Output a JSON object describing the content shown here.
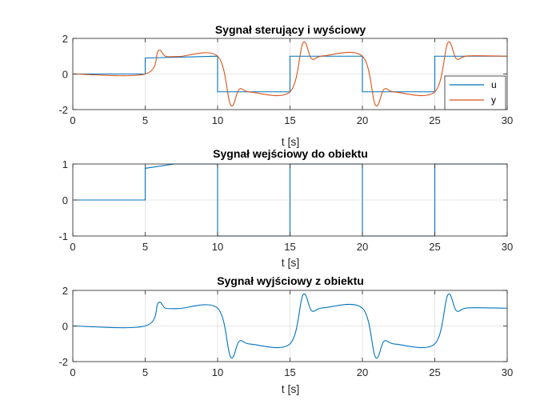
{
  "colors": {
    "u": "#0072BD",
    "y": "#D95319",
    "grid": "#dfdfdf",
    "axis": "#262626"
  },
  "chart_data": [
    {
      "type": "line",
      "title": "Sygnał sterujący i wyściowy",
      "xlabel": "t [s]",
      "xlim": [
        0,
        30
      ],
      "ylim": [
        -2,
        2
      ],
      "xticks": [
        0,
        5,
        10,
        15,
        20,
        25,
        30
      ],
      "yticks": [
        -2,
        0,
        2
      ],
      "grid": true,
      "legend": {
        "placement": "bottom-right",
        "entries": [
          "u",
          "y"
        ]
      },
      "series": [
        {
          "name": "u",
          "signal": "setpoint",
          "x": [
            0,
            5,
            5,
            10,
            10,
            15,
            15,
            20,
            20,
            25,
            25,
            30
          ],
          "y": [
            0,
            0,
            0.9,
            1,
            -1,
            -1,
            1,
            1,
            -1,
            -1,
            1,
            1
          ]
        },
        {
          "name": "y",
          "signal": "output",
          "x": [
            0,
            5,
            5.9,
            6.4,
            7.3,
            10,
            10.9,
            11.5,
            12.3,
            15,
            15.9,
            16.5,
            17.3,
            20,
            20.9,
            21.5,
            22.3,
            25,
            25.9,
            26.5,
            27.3,
            30
          ],
          "y": [
            0,
            0,
            1.3,
            1.0,
            0.98,
            1,
            -1.75,
            -0.85,
            -1.02,
            -1,
            1.75,
            0.85,
            1.02,
            1,
            -1.75,
            -0.85,
            -1.02,
            -1,
            1.75,
            0.85,
            1.02,
            1
          ]
        }
      ]
    },
    {
      "type": "line",
      "title": "Sygnał wejściowy do obiektu",
      "xlabel": "t [s]",
      "xlim": [
        0,
        30
      ],
      "ylim": [
        -1,
        1
      ],
      "xticks": [
        0,
        5,
        10,
        15,
        20,
        25,
        30
      ],
      "yticks": [
        -1,
        0,
        1
      ],
      "grid": true,
      "series": [
        {
          "signal": "control",
          "x": [
            0,
            5,
            5,
            7,
            10,
            10,
            15,
            15,
            20,
            20,
            25,
            25,
            30
          ],
          "y": [
            0,
            0,
            0.88,
            1,
            1,
            -1,
            -1,
            1,
            1,
            -1,
            -1,
            1,
            1
          ]
        }
      ]
    },
    {
      "type": "line",
      "title": "Sygnał wyjściowy z obiektu",
      "xlabel": "t [s]",
      "xlim": [
        0,
        30
      ],
      "ylim": [
        -2,
        2
      ],
      "xticks": [
        0,
        5,
        10,
        15,
        20,
        25,
        30
      ],
      "yticks": [
        -2,
        0,
        2
      ],
      "grid": true,
      "series": [
        {
          "signal": "output",
          "x": [
            0,
            5,
            5.9,
            6.4,
            7.3,
            10,
            10.9,
            11.5,
            12.3,
            15,
            15.9,
            16.5,
            17.3,
            20,
            20.9,
            21.5,
            22.3,
            25,
            25.9,
            26.5,
            27.3,
            30
          ],
          "y": [
            0,
            0,
            1.3,
            1.0,
            0.98,
            1,
            -1.75,
            -0.85,
            -1.02,
            -1,
            1.75,
            0.85,
            1.02,
            1,
            -1.75,
            -0.85,
            -1.02,
            -1,
            1.75,
            0.85,
            1.02,
            1
          ]
        }
      ]
    }
  ]
}
